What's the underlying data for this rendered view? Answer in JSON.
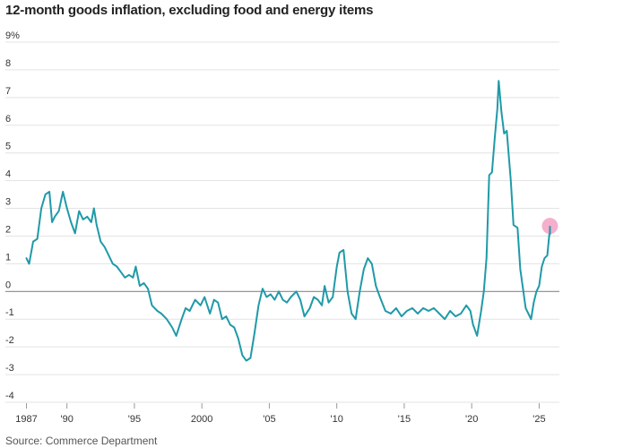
{
  "title": "12-month goods inflation, excluding food and energy items",
  "source": "Source: Commerce Department",
  "chart_data": {
    "type": "line",
    "title": "12-month goods inflation, excluding food and energy items",
    "xlabel": "",
    "ylabel": "",
    "xlim": [
      1986.5,
      2026.5
    ],
    "ylim": [
      -4,
      9
    ],
    "y_ticks": [
      -4,
      -3,
      -2,
      -1,
      0,
      1,
      2,
      3,
      4,
      5,
      6,
      7,
      8,
      9
    ],
    "y_tick_labels": [
      "-4",
      "-3",
      "-2",
      "-1",
      "0",
      "1",
      "2",
      "3",
      "4",
      "5",
      "6",
      "7",
      "8",
      "9%"
    ],
    "x_ticks": [
      1987,
      1990,
      1995,
      2000,
      2005,
      2010,
      2015,
      2020,
      2025
    ],
    "x_tick_labels": [
      "1987",
      "'90",
      "'95",
      "2000",
      "'05",
      "'10",
      "'15",
      "'20",
      "'25"
    ],
    "grid": true,
    "zero_line": true,
    "line_color": "#1f9aa8",
    "highlight_color": "#f4a6c6",
    "highlight_point": {
      "x": 2025.8,
      "y": 2.3
    },
    "series": [
      {
        "x": [
          1987.0,
          1987.2,
          1987.5,
          1987.8,
          1988.1,
          1988.4,
          1988.7,
          1988.9,
          1989.1,
          1989.4,
          1989.7,
          1990.0,
          1990.3,
          1990.6,
          1990.9,
          1991.2,
          1991.5,
          1991.8,
          1992.0,
          1992.2,
          1992.5,
          1992.8,
          1993.1,
          1993.4,
          1993.7,
          1994.0,
          1994.3,
          1994.6,
          1994.9,
          1995.1,
          1995.4,
          1995.7,
          1996.0,
          1996.3,
          1996.7,
          1997.0,
          1997.4,
          1997.8,
          1998.1,
          1998.5,
          1998.8,
          1999.1,
          1999.5,
          1999.9,
          2000.2,
          2000.6,
          2000.9,
          2001.2,
          2001.5,
          2001.8,
          2002.1,
          2002.4,
          2002.7,
          2003.0,
          2003.3,
          2003.6,
          2003.9,
          2004.2,
          2004.5,
          2004.8,
          2005.1,
          2005.4,
          2005.7,
          2006.0,
          2006.3,
          2006.6,
          2007.0,
          2007.3,
          2007.6,
          2008.0,
          2008.3,
          2008.6,
          2008.9,
          2009.1,
          2009.4,
          2009.7,
          2010.0,
          2010.2,
          2010.5,
          2010.8,
          2011.1,
          2011.4,
          2011.7,
          2012.0,
          2012.3,
          2012.6,
          2012.9,
          2013.2,
          2013.6,
          2014.0,
          2014.4,
          2014.8,
          2015.2,
          2015.6,
          2016.0,
          2016.4,
          2016.8,
          2017.2,
          2017.6,
          2018.0,
          2018.4,
          2018.8,
          2019.2,
          2019.6,
          2019.9,
          2020.1,
          2020.4,
          2020.7,
          2020.9,
          2021.1,
          2021.3,
          2021.5,
          2021.7,
          2021.9,
          2022.0,
          2022.2,
          2022.4,
          2022.6,
          2022.9,
          2023.1,
          2023.4,
          2023.6,
          2023.8,
          2024.0,
          2024.2,
          2024.4,
          2024.6,
          2024.8,
          2025.0,
          2025.2,
          2025.4,
          2025.6,
          2025.8
        ],
        "y": [
          1.2,
          1.0,
          1.8,
          1.9,
          3.0,
          3.5,
          3.6,
          2.5,
          2.7,
          2.9,
          3.6,
          3.0,
          2.5,
          2.1,
          2.9,
          2.6,
          2.7,
          2.5,
          3.0,
          2.4,
          1.8,
          1.6,
          1.3,
          1.0,
          0.9,
          0.7,
          0.5,
          0.6,
          0.5,
          0.9,
          0.2,
          0.3,
          0.1,
          -0.5,
          -0.7,
          -0.8,
          -1.0,
          -1.3,
          -1.6,
          -1.0,
          -0.6,
          -0.7,
          -0.3,
          -0.5,
          -0.2,
          -0.8,
          -0.3,
          -0.4,
          -1.0,
          -0.9,
          -1.2,
          -1.3,
          -1.7,
          -2.3,
          -2.5,
          -2.4,
          -1.5,
          -0.5,
          0.1,
          -0.2,
          -0.1,
          -0.3,
          0.0,
          -0.3,
          -0.4,
          -0.2,
          0.0,
          -0.3,
          -0.9,
          -0.6,
          -0.2,
          -0.3,
          -0.5,
          0.2,
          -0.4,
          -0.2,
          0.9,
          1.4,
          1.5,
          0.0,
          -0.8,
          -1.0,
          0.0,
          0.8,
          1.2,
          1.0,
          0.2,
          -0.2,
          -0.7,
          -0.8,
          -0.6,
          -0.9,
          -0.7,
          -0.6,
          -0.8,
          -0.6,
          -0.7,
          -0.6,
          -0.8,
          -1.0,
          -0.7,
          -0.9,
          -0.8,
          -0.5,
          -0.7,
          -1.2,
          -1.6,
          -0.7,
          0.0,
          1.2,
          4.2,
          4.3,
          5.5,
          6.6,
          7.6,
          6.5,
          5.7,
          5.8,
          4.0,
          2.4,
          2.3,
          0.8,
          0.1,
          -0.6,
          -0.8,
          -1.0,
          -0.4,
          0.0,
          0.2,
          0.9,
          1.2,
          1.3,
          2.3
        ]
      }
    ]
  }
}
